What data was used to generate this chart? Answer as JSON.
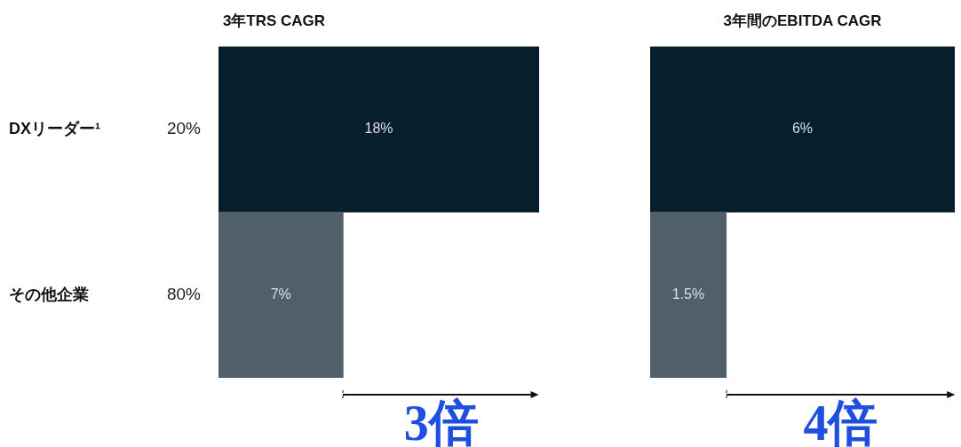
{
  "chart_data": [
    {
      "type": "bar",
      "orientation": "horizontal",
      "title": "3年TRS CAGR",
      "categories": [
        "DXリーダー¹",
        "その他企業"
      ],
      "values": [
        18,
        7
      ],
      "value_labels": [
        "18%",
        "7%"
      ],
      "colors": [
        "#071e2c",
        "#4f606a"
      ],
      "grid": false,
      "legend": false,
      "annotations": [
        "20%",
        "80%",
        "3倍"
      ]
    },
    {
      "type": "bar",
      "orientation": "horizontal",
      "title": "3年間のEBITDA CAGR",
      "categories": [
        null,
        null
      ],
      "values": [
        6,
        1.5
      ],
      "value_labels": [
        "6%",
        "1.5%"
      ],
      "colors": [
        "#071e2c",
        "#4f606a"
      ],
      "grid": false,
      "legend": false,
      "tick_labels": false,
      "annotations": [
        "4倍"
      ]
    }
  ]
}
